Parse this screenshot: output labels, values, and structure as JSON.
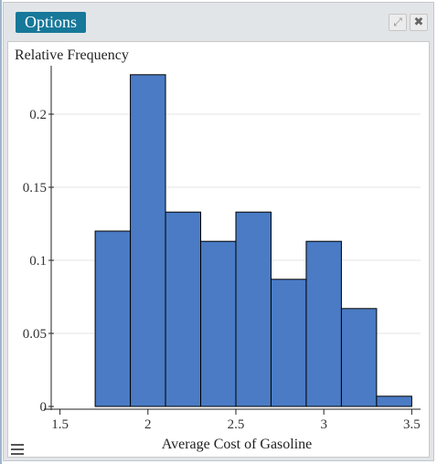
{
  "header": {
    "options_label": "Options",
    "expand_icon": "expand-icon",
    "close_icon": "close-icon"
  },
  "footer": {
    "menu_icon": "hamburger-menu-icon"
  },
  "colors": {
    "bar_fill": "#4a7bc4",
    "bar_stroke": "#000000",
    "grid": "#e6e6e6",
    "options_bg": "#17789a"
  },
  "chart_data": {
    "type": "bar",
    "title": "",
    "xlabel": "Average Cost of Gasoline",
    "ylabel": "Relative Frequency",
    "xlim": [
      1.45,
      3.55
    ],
    "ylim": [
      0,
      0.23
    ],
    "xticks": [
      1.5,
      2,
      2.5,
      3,
      3.5
    ],
    "xtick_labels": [
      "1.5",
      "2",
      "2.5",
      "3",
      "3.5"
    ],
    "yticks": [
      0,
      0.05,
      0.1,
      0.15,
      0.2
    ],
    "ytick_labels": [
      "0",
      "0.05",
      "0.1",
      "0.15",
      "0.2"
    ],
    "grid": true,
    "bins": [
      {
        "x0": 1.7,
        "x1": 1.9,
        "value": 0.12
      },
      {
        "x0": 1.9,
        "x1": 2.1,
        "value": 0.227
      },
      {
        "x0": 2.1,
        "x1": 2.3,
        "value": 0.133
      },
      {
        "x0": 2.3,
        "x1": 2.5,
        "value": 0.113
      },
      {
        "x0": 2.5,
        "x1": 2.7,
        "value": 0.133
      },
      {
        "x0": 2.7,
        "x1": 2.9,
        "value": 0.087
      },
      {
        "x0": 2.9,
        "x1": 3.1,
        "value": 0.113
      },
      {
        "x0": 3.1,
        "x1": 3.3,
        "value": 0.067
      },
      {
        "x0": 3.3,
        "x1": 3.5,
        "value": 0.007
      }
    ]
  }
}
